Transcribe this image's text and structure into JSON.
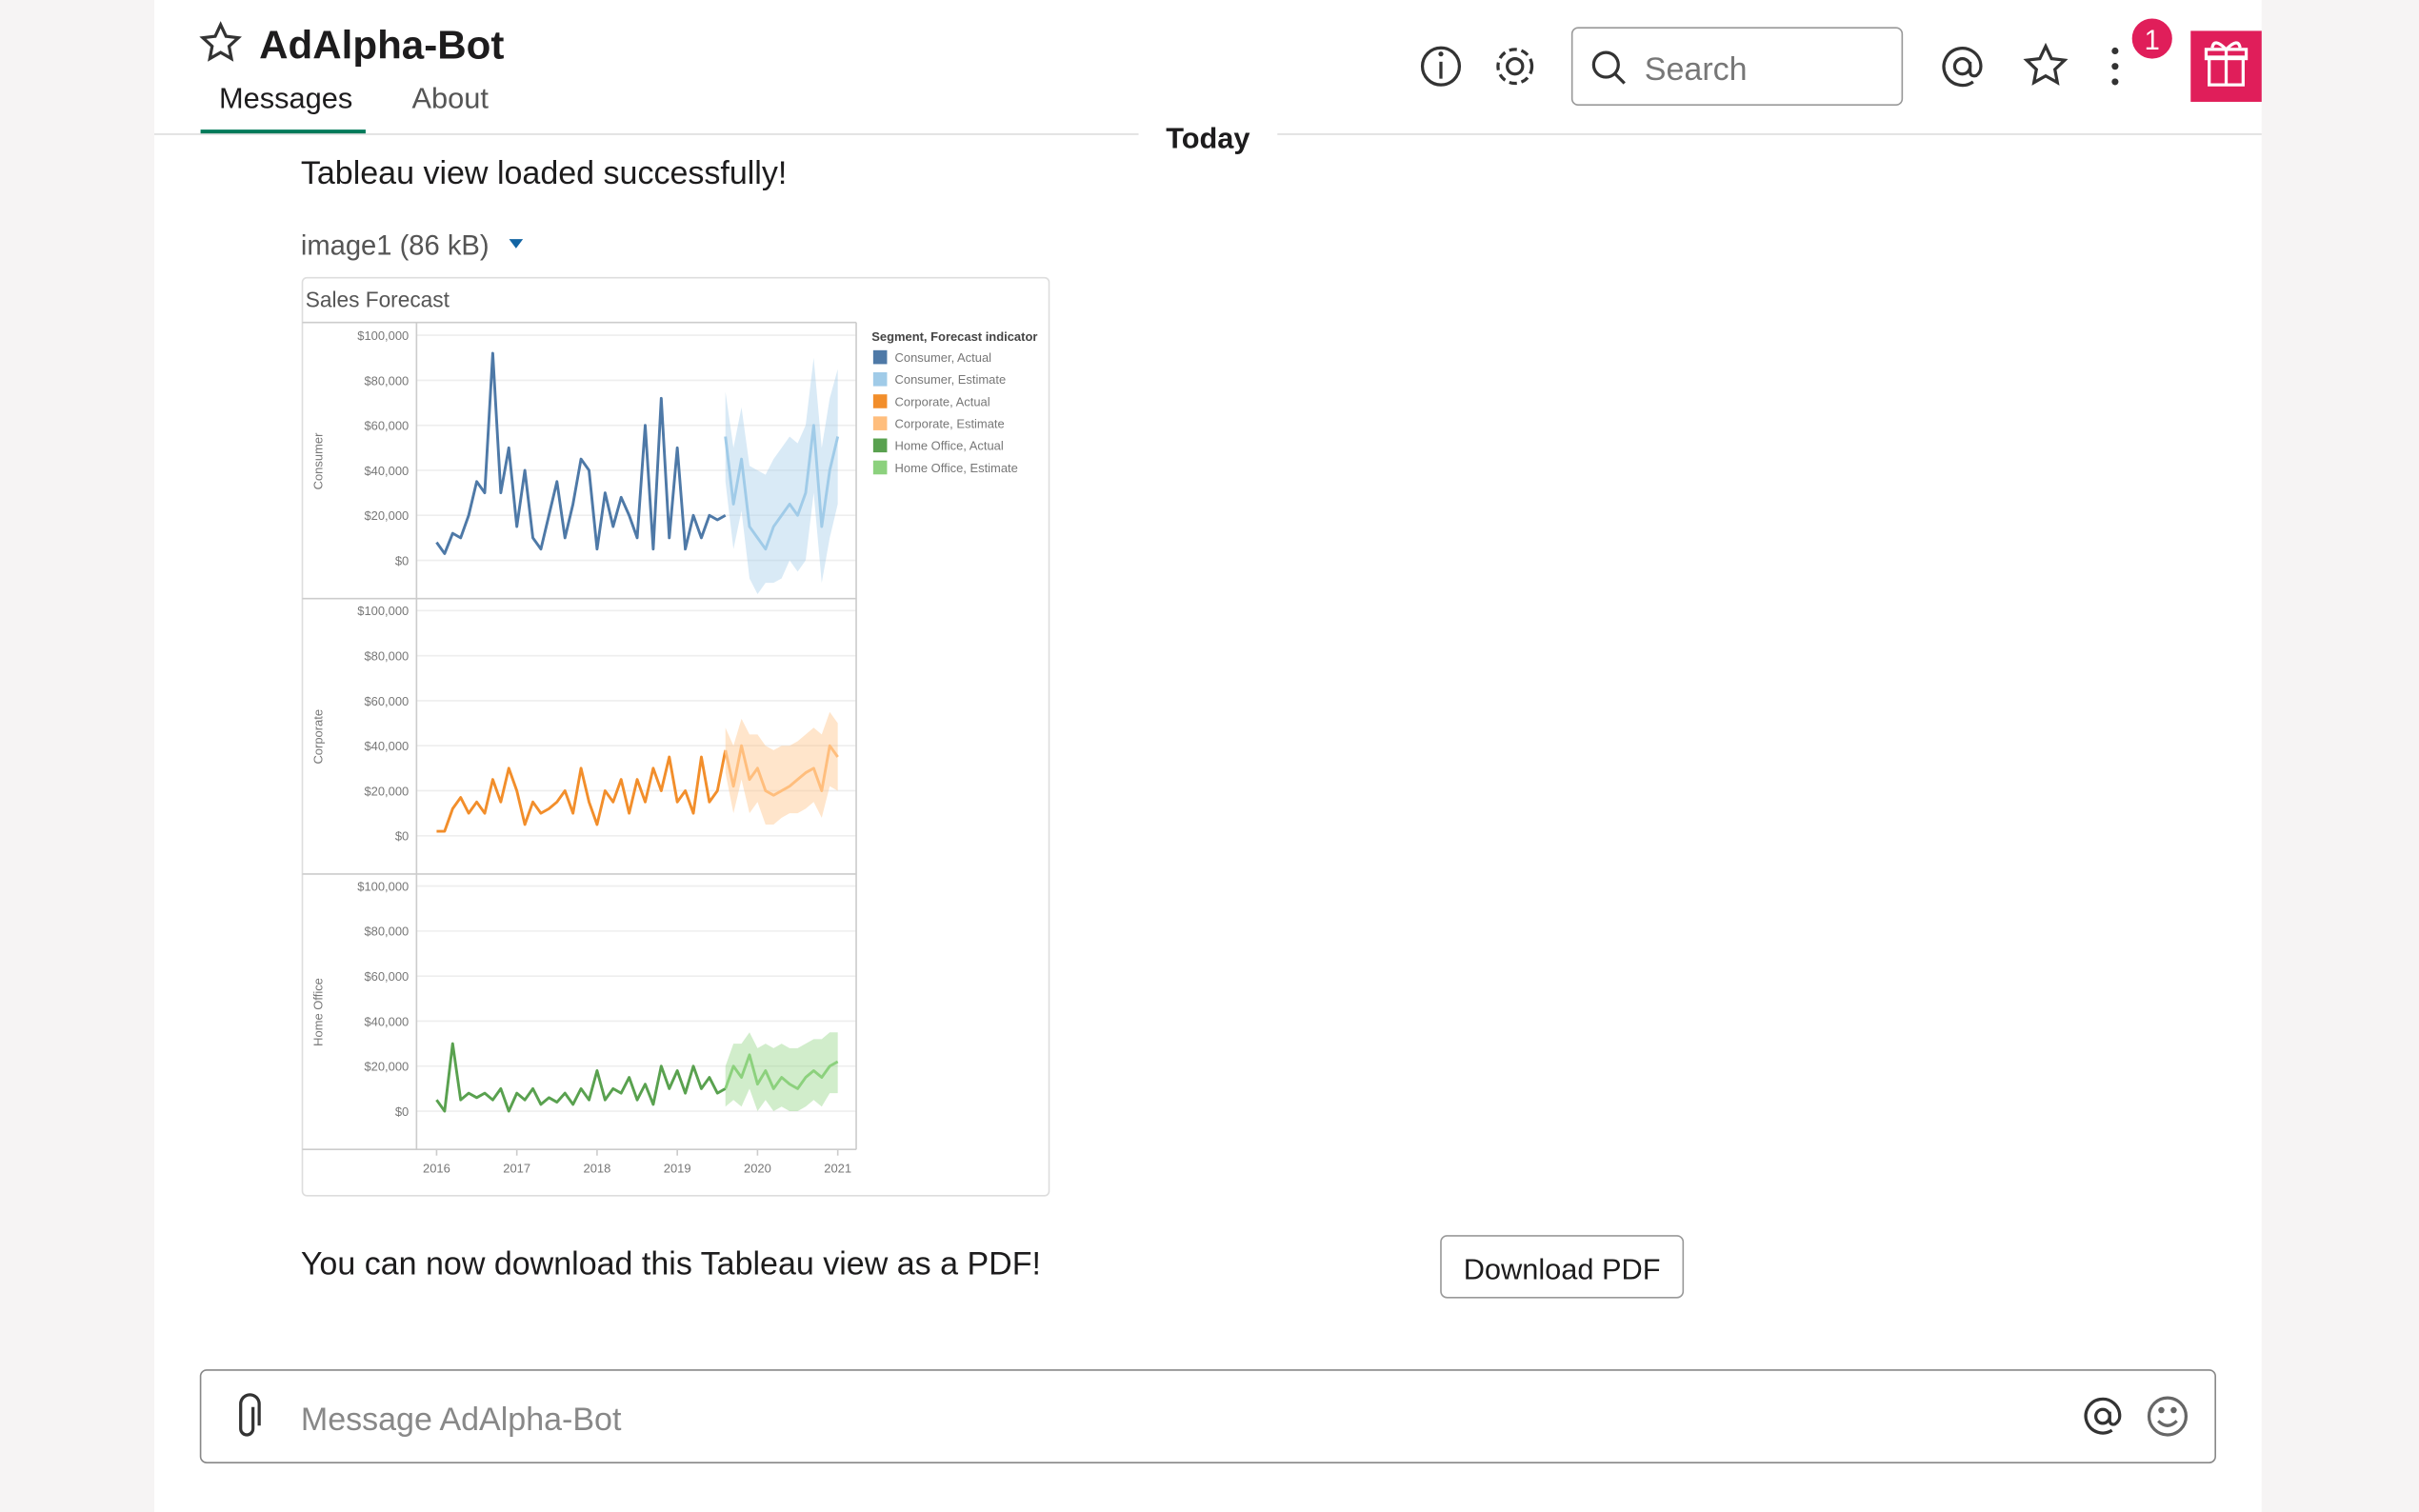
{
  "header": {
    "title": "AdAlpha-Bot",
    "tabs": [
      "Messages",
      "About"
    ],
    "search_placeholder": "Search",
    "badge": 1
  },
  "divider": "Today",
  "messages": [
    {
      "text": "Tableau view loaded successfully!",
      "attachment": "image1 (86 kB)"
    },
    {
      "text": "You can now download this Tableau view as a PDF!",
      "button": "Download PDF"
    }
  ],
  "composer": {
    "placeholder": "Message AdAlpha-Bot"
  },
  "chart_data": {
    "type": "line",
    "title": "Sales Forecast",
    "facets": [
      "Consumer",
      "Corporate",
      "Home Office"
    ],
    "legend_title": "Segment, Forecast indicator",
    "grid": true,
    "xlim": [
      2015.75,
      2021.23
    ],
    "xticks": [
      2016,
      2017,
      2018,
      2019,
      2020,
      2021
    ],
    "ylim": [
      -17000,
      105000
    ],
    "yticks": [
      {
        "value": 0,
        "label": "$0"
      },
      {
        "value": 20000,
        "label": "$20,000"
      },
      {
        "value": 40000,
        "label": "$40,000"
      },
      {
        "value": 60000,
        "label": "$60,000"
      },
      {
        "value": 80000,
        "label": "$80,000"
      },
      {
        "value": 100000,
        "label": "$100,000"
      }
    ],
    "series": [
      {
        "name": "Consumer, Actual",
        "color": "#4e79a7",
        "facet": 0,
        "x": [
          2016,
          2016.1,
          2016.2,
          2016.3,
          2016.4,
          2016.5,
          2016.6,
          2016.7,
          2016.8,
          2016.9,
          2017,
          2017.1,
          2017.2,
          2017.3,
          2017.4,
          2017.5,
          2017.6,
          2017.7,
          2017.8,
          2017.9,
          2018,
          2018.1,
          2018.2,
          2018.3,
          2018.4,
          2018.5,
          2018.6,
          2018.7,
          2018.8,
          2018.9,
          2019,
          2019.1,
          2019.2,
          2019.3,
          2019.4,
          2019.5,
          2019.6
        ],
        "values": [
          8000,
          3000,
          12000,
          10000,
          20000,
          35000,
          30000,
          92000,
          30000,
          50000,
          15000,
          40000,
          10000,
          5000,
          20000,
          35000,
          10000,
          25000,
          45000,
          40000,
          5000,
          30000,
          15000,
          28000,
          20000,
          10000,
          60000,
          5000,
          72000,
          10000,
          50000,
          5000,
          20000,
          10000,
          20000,
          18000,
          20000
        ]
      },
      {
        "name": "Consumer, Estimate",
        "color": "#a0cbe8",
        "facet": 0,
        "x": [
          2019.6,
          2019.7,
          2019.8,
          2019.9,
          2020,
          2020.1,
          2020.2,
          2020.3,
          2020.4,
          2020.5,
          2020.6,
          2020.7,
          2020.8,
          2020.9,
          2021
        ],
        "values": [
          55000,
          25000,
          45000,
          15000,
          10000,
          5000,
          15000,
          20000,
          25000,
          20000,
          30000,
          60000,
          15000,
          40000,
          55000
        ],
        "upper": [
          75000,
          50000,
          68000,
          42000,
          40000,
          38000,
          45000,
          50000,
          55000,
          52000,
          60000,
          90000,
          50000,
          72000,
          85000
        ],
        "lower": [
          35000,
          5000,
          22000,
          -8000,
          -15000,
          -10000,
          -10000,
          -8000,
          0,
          -5000,
          0,
          30000,
          -10000,
          10000,
          25000
        ]
      },
      {
        "name": "Corporate, Actual",
        "color": "#f28e2b",
        "facet": 1,
        "x": [
          2016,
          2016.1,
          2016.2,
          2016.3,
          2016.4,
          2016.5,
          2016.6,
          2016.7,
          2016.8,
          2016.9,
          2017,
          2017.1,
          2017.2,
          2017.3,
          2017.4,
          2017.5,
          2017.6,
          2017.7,
          2017.8,
          2017.9,
          2018,
          2018.1,
          2018.2,
          2018.3,
          2018.4,
          2018.5,
          2018.6,
          2018.7,
          2018.8,
          2018.9,
          2019,
          2019.1,
          2019.2,
          2019.3,
          2019.4,
          2019.5,
          2019.6
        ],
        "values": [
          2000,
          2000,
          12000,
          17000,
          10000,
          15000,
          10000,
          25000,
          15000,
          30000,
          20000,
          5000,
          15000,
          10000,
          12000,
          15000,
          20000,
          10000,
          30000,
          15000,
          5000,
          20000,
          15000,
          25000,
          10000,
          25000,
          15000,
          30000,
          20000,
          35000,
          15000,
          20000,
          10000,
          35000,
          15000,
          20000,
          38000
        ]
      },
      {
        "name": "Corporate, Estimate",
        "color": "#ffbe7d",
        "facet": 1,
        "x": [
          2019.6,
          2019.7,
          2019.8,
          2019.9,
          2020,
          2020.1,
          2020.2,
          2020.3,
          2020.4,
          2020.5,
          2020.6,
          2020.7,
          2020.8,
          2020.9,
          2021
        ],
        "values": [
          38000,
          22000,
          40000,
          25000,
          30000,
          20000,
          18000,
          20000,
          22000,
          25000,
          28000,
          30000,
          20000,
          40000,
          35000
        ],
        "upper": [
          48000,
          40000,
          52000,
          45000,
          45000,
          40000,
          38000,
          40000,
          40000,
          42000,
          45000,
          48000,
          45000,
          55000,
          50000
        ],
        "lower": [
          28000,
          10000,
          25000,
          10000,
          15000,
          5000,
          5000,
          8000,
          10000,
          10000,
          12000,
          15000,
          8000,
          22000,
          20000
        ]
      },
      {
        "name": "Home Office, Actual",
        "color": "#59a14f",
        "facet": 2,
        "x": [
          2016,
          2016.1,
          2016.2,
          2016.3,
          2016.4,
          2016.5,
          2016.6,
          2016.7,
          2016.8,
          2016.9,
          2017,
          2017.1,
          2017.2,
          2017.3,
          2017.4,
          2017.5,
          2017.6,
          2017.7,
          2017.8,
          2017.9,
          2018,
          2018.1,
          2018.2,
          2018.3,
          2018.4,
          2018.5,
          2018.6,
          2018.7,
          2018.8,
          2018.9,
          2019,
          2019.1,
          2019.2,
          2019.3,
          2019.4,
          2019.5,
          2019.6
        ],
        "values": [
          5000,
          0,
          30000,
          5000,
          8000,
          6000,
          8000,
          5000,
          10000,
          0,
          8000,
          5000,
          10000,
          3000,
          6000,
          4000,
          8000,
          3000,
          10000,
          5000,
          18000,
          5000,
          10000,
          8000,
          15000,
          5000,
          12000,
          3000,
          20000,
          10000,
          18000,
          8000,
          20000,
          10000,
          15000,
          8000,
          10000
        ]
      },
      {
        "name": "Home Office, Estimate",
        "color": "#8cd17d",
        "facet": 2,
        "x": [
          2019.6,
          2019.7,
          2019.8,
          2019.9,
          2020,
          2020.1,
          2020.2,
          2020.3,
          2020.4,
          2020.5,
          2020.6,
          2020.7,
          2020.8,
          2020.9,
          2021
        ],
        "values": [
          10000,
          20000,
          15000,
          25000,
          12000,
          18000,
          10000,
          15000,
          12000,
          10000,
          15000,
          18000,
          15000,
          20000,
          22000
        ],
        "upper": [
          20000,
          30000,
          30000,
          35000,
          28000,
          30000,
          28000,
          30000,
          28000,
          28000,
          30000,
          32000,
          32000,
          35000,
          35000
        ],
        "lower": [
          2000,
          5000,
          2000,
          10000,
          0,
          5000,
          0,
          2000,
          0,
          0,
          2000,
          5000,
          2000,
          8000,
          8000
        ]
      }
    ]
  }
}
